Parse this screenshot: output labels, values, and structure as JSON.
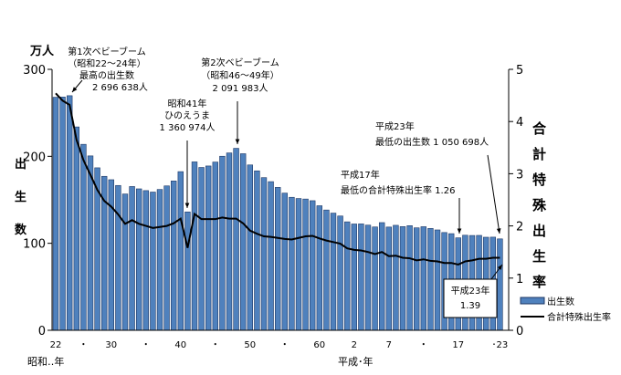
{
  "chart_data": {
    "type": "bar+line",
    "left_unit": "万人",
    "ylabel_left": "出生数",
    "ylabel_right": "合計特殊出生率",
    "ylim_left": [
      0,
      300
    ],
    "yticks_left": [
      "0",
      "100",
      "200",
      "300"
    ],
    "ylim_right": [
      0,
      5
    ],
    "yticks_right": [
      "0",
      "1",
      "2",
      "3",
      "4",
      "5"
    ],
    "x": [
      1947,
      1948,
      1949,
      1950,
      1951,
      1952,
      1953,
      1954,
      1955,
      1956,
      1957,
      1958,
      1959,
      1960,
      1961,
      1962,
      1963,
      1964,
      1965,
      1966,
      1967,
      1968,
      1969,
      1970,
      1971,
      1972,
      1973,
      1974,
      1975,
      1976,
      1977,
      1978,
      1979,
      1980,
      1981,
      1982,
      1983,
      1984,
      1985,
      1986,
      1987,
      1988,
      1989,
      1990,
      1991,
      1992,
      1993,
      1994,
      1995,
      1996,
      1997,
      1998,
      1999,
      2000,
      2001,
      2002,
      2003,
      2004,
      2005,
      2006,
      2007,
      2008,
      2009,
      2010,
      2011
    ],
    "xtick_labels": [
      {
        "year": 1947,
        "label": "22"
      },
      {
        "year": 1951,
        "label": "・"
      },
      {
        "year": 1955,
        "label": "30"
      },
      {
        "year": 1960,
        "label": "・"
      },
      {
        "year": 1965,
        "label": "40"
      },
      {
        "year": 1970,
        "label": "・"
      },
      {
        "year": 1975,
        "label": "50"
      },
      {
        "year": 1980,
        "label": "・"
      },
      {
        "year": 1985,
        "label": "60"
      },
      {
        "year": 1990,
        "label": "2"
      },
      {
        "year": 1995,
        "label": "7"
      },
      {
        "year": 2000,
        "label": "・"
      },
      {
        "year": 2005,
        "label": "17"
      },
      {
        "year": 2011,
        "label": "･23"
      }
    ],
    "xlabel_showa": "昭和‥年",
    "xlabel_heisei": "平成･年",
    "series": [
      {
        "name": "出生数",
        "type": "bar",
        "color": "#4F81BD",
        "values": [
          267.9,
          268.2,
          269.7,
          233.8,
          213.8,
          200.5,
          186.8,
          177.0,
          173.1,
          166.5,
          156.7,
          165.3,
          162.6,
          160.6,
          158.9,
          161.9,
          166.0,
          171.7,
          182.4,
          136.1,
          193.6,
          187.2,
          188.9,
          193.4,
          200.1,
          203.9,
          209.2,
          203.0,
          190.1,
          183.3,
          175.5,
          170.9,
          164.3,
          157.7,
          152.9,
          151.5,
          150.9,
          149.0,
          143.2,
          138.3,
          134.7,
          131.4,
          124.7,
          122.2,
          122.3,
          120.9,
          118.8,
          123.8,
          118.7,
          120.7,
          119.2,
          120.3,
          117.8,
          119.1,
          117.1,
          115.4,
          112.4,
          111.1,
          106.3,
          109.3,
          109.0,
          109.1,
          107.0,
          107.1,
          105.1
        ]
      },
      {
        "name": "合計特殊出生率",
        "type": "line",
        "color": "#000000",
        "values": [
          4.54,
          4.4,
          4.32,
          3.65,
          3.26,
          2.98,
          2.69,
          2.48,
          2.37,
          2.22,
          2.04,
          2.11,
          2.04,
          2.0,
          1.96,
          1.98,
          2.0,
          2.05,
          2.14,
          1.58,
          2.23,
          2.13,
          2.13,
          2.13,
          2.16,
          2.14,
          2.14,
          2.05,
          1.91,
          1.85,
          1.8,
          1.79,
          1.77,
          1.75,
          1.74,
          1.77,
          1.8,
          1.81,
          1.76,
          1.72,
          1.69,
          1.66,
          1.57,
          1.54,
          1.53,
          1.5,
          1.46,
          1.5,
          1.42,
          1.43,
          1.39,
          1.38,
          1.34,
          1.36,
          1.33,
          1.32,
          1.29,
          1.29,
          1.26,
          1.32,
          1.34,
          1.37,
          1.37,
          1.39,
          1.39
        ]
      }
    ],
    "annotations": {
      "boom1": [
        "第1次ベビーブーム",
        "（昭和22～24年）",
        "最高の出生数",
        "2 696 638人"
      ],
      "hinoe": [
        "昭和41年",
        "ひのえうま",
        "1 360 974人"
      ],
      "boom2": [
        "第2次ベビーブーム",
        "（昭和46～49年）",
        "2 091 983人"
      ],
      "low_births": [
        "平成23年",
        "最低の出生数 1 050 698人"
      ],
      "low_tfr": [
        "平成17年",
        "最低の合計特殊出生率 1.26"
      ],
      "box": [
        "平成23年",
        "1.39"
      ]
    },
    "legend_position": "right"
  }
}
